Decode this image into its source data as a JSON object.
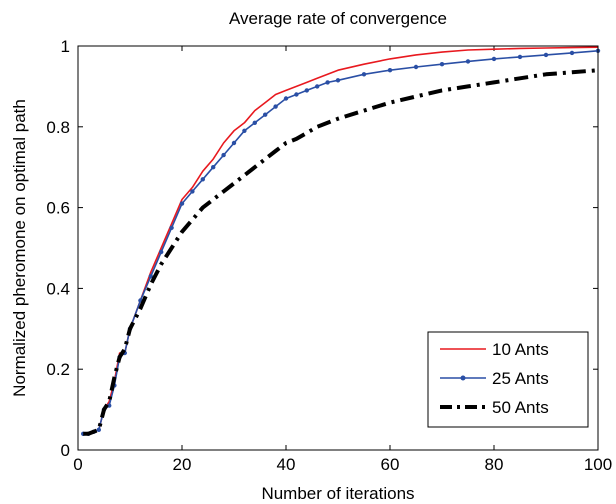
{
  "chart_data": {
    "type": "line",
    "title": "Average rate of convergence",
    "xlabel": "Number of iterations",
    "ylabel": "Normalized pheromone on optimal path",
    "xlim": [
      0,
      100
    ],
    "ylim": [
      0,
      1
    ],
    "xticks": [
      0,
      20,
      40,
      60,
      80,
      100
    ],
    "xtick_labels": [
      "0",
      "20",
      "40",
      "60",
      "80",
      "100"
    ],
    "yticks": [
      0,
      0.2,
      0.4,
      0.6,
      0.8,
      1
    ],
    "ytick_labels": [
      "0",
      "0.2",
      "0.4",
      "0.6",
      "0.8",
      "1"
    ],
    "grid": false,
    "legend_position": "bottom-right",
    "x": [
      1,
      2,
      3,
      4,
      5,
      6,
      7,
      8,
      9,
      10,
      12,
      14,
      16,
      18,
      20,
      22,
      24,
      26,
      28,
      30,
      32,
      34,
      36,
      38,
      40,
      42,
      44,
      46,
      48,
      50,
      55,
      60,
      65,
      70,
      75,
      80,
      85,
      90,
      95,
      100
    ],
    "series": [
      {
        "name": "10 Ants",
        "color": "#e8191f",
        "style": "solid",
        "marker": "none",
        "values": [
          0.04,
          0.04,
          0.045,
          0.05,
          0.1,
          0.12,
          0.17,
          0.24,
          0.24,
          0.3,
          0.37,
          0.44,
          0.5,
          0.56,
          0.62,
          0.65,
          0.69,
          0.72,
          0.76,
          0.79,
          0.81,
          0.84,
          0.86,
          0.88,
          0.89,
          0.9,
          0.91,
          0.92,
          0.93,
          0.94,
          0.955,
          0.968,
          0.978,
          0.985,
          0.99,
          0.992,
          0.994,
          0.995,
          0.996,
          0.997
        ]
      },
      {
        "name": "25 Ants",
        "color": "#2a4fa5",
        "style": "solid",
        "marker": "dot",
        "values": [
          0.04,
          0.04,
          0.045,
          0.05,
          0.1,
          0.11,
          0.16,
          0.23,
          0.24,
          0.3,
          0.37,
          0.43,
          0.49,
          0.55,
          0.61,
          0.64,
          0.67,
          0.7,
          0.73,
          0.76,
          0.79,
          0.81,
          0.83,
          0.85,
          0.87,
          0.88,
          0.89,
          0.9,
          0.91,
          0.915,
          0.93,
          0.94,
          0.948,
          0.955,
          0.962,
          0.968,
          0.973,
          0.978,
          0.983,
          0.988
        ]
      },
      {
        "name": "50 Ants",
        "color": "#000000",
        "style": "dash-dot",
        "marker": "none",
        "values": [
          0.04,
          0.04,
          0.045,
          0.05,
          0.1,
          0.12,
          0.18,
          0.23,
          0.25,
          0.3,
          0.35,
          0.41,
          0.46,
          0.5,
          0.54,
          0.57,
          0.6,
          0.62,
          0.64,
          0.66,
          0.68,
          0.7,
          0.72,
          0.74,
          0.76,
          0.77,
          0.785,
          0.8,
          0.81,
          0.82,
          0.84,
          0.86,
          0.875,
          0.89,
          0.9,
          0.91,
          0.92,
          0.93,
          0.935,
          0.94
        ]
      }
    ]
  }
}
